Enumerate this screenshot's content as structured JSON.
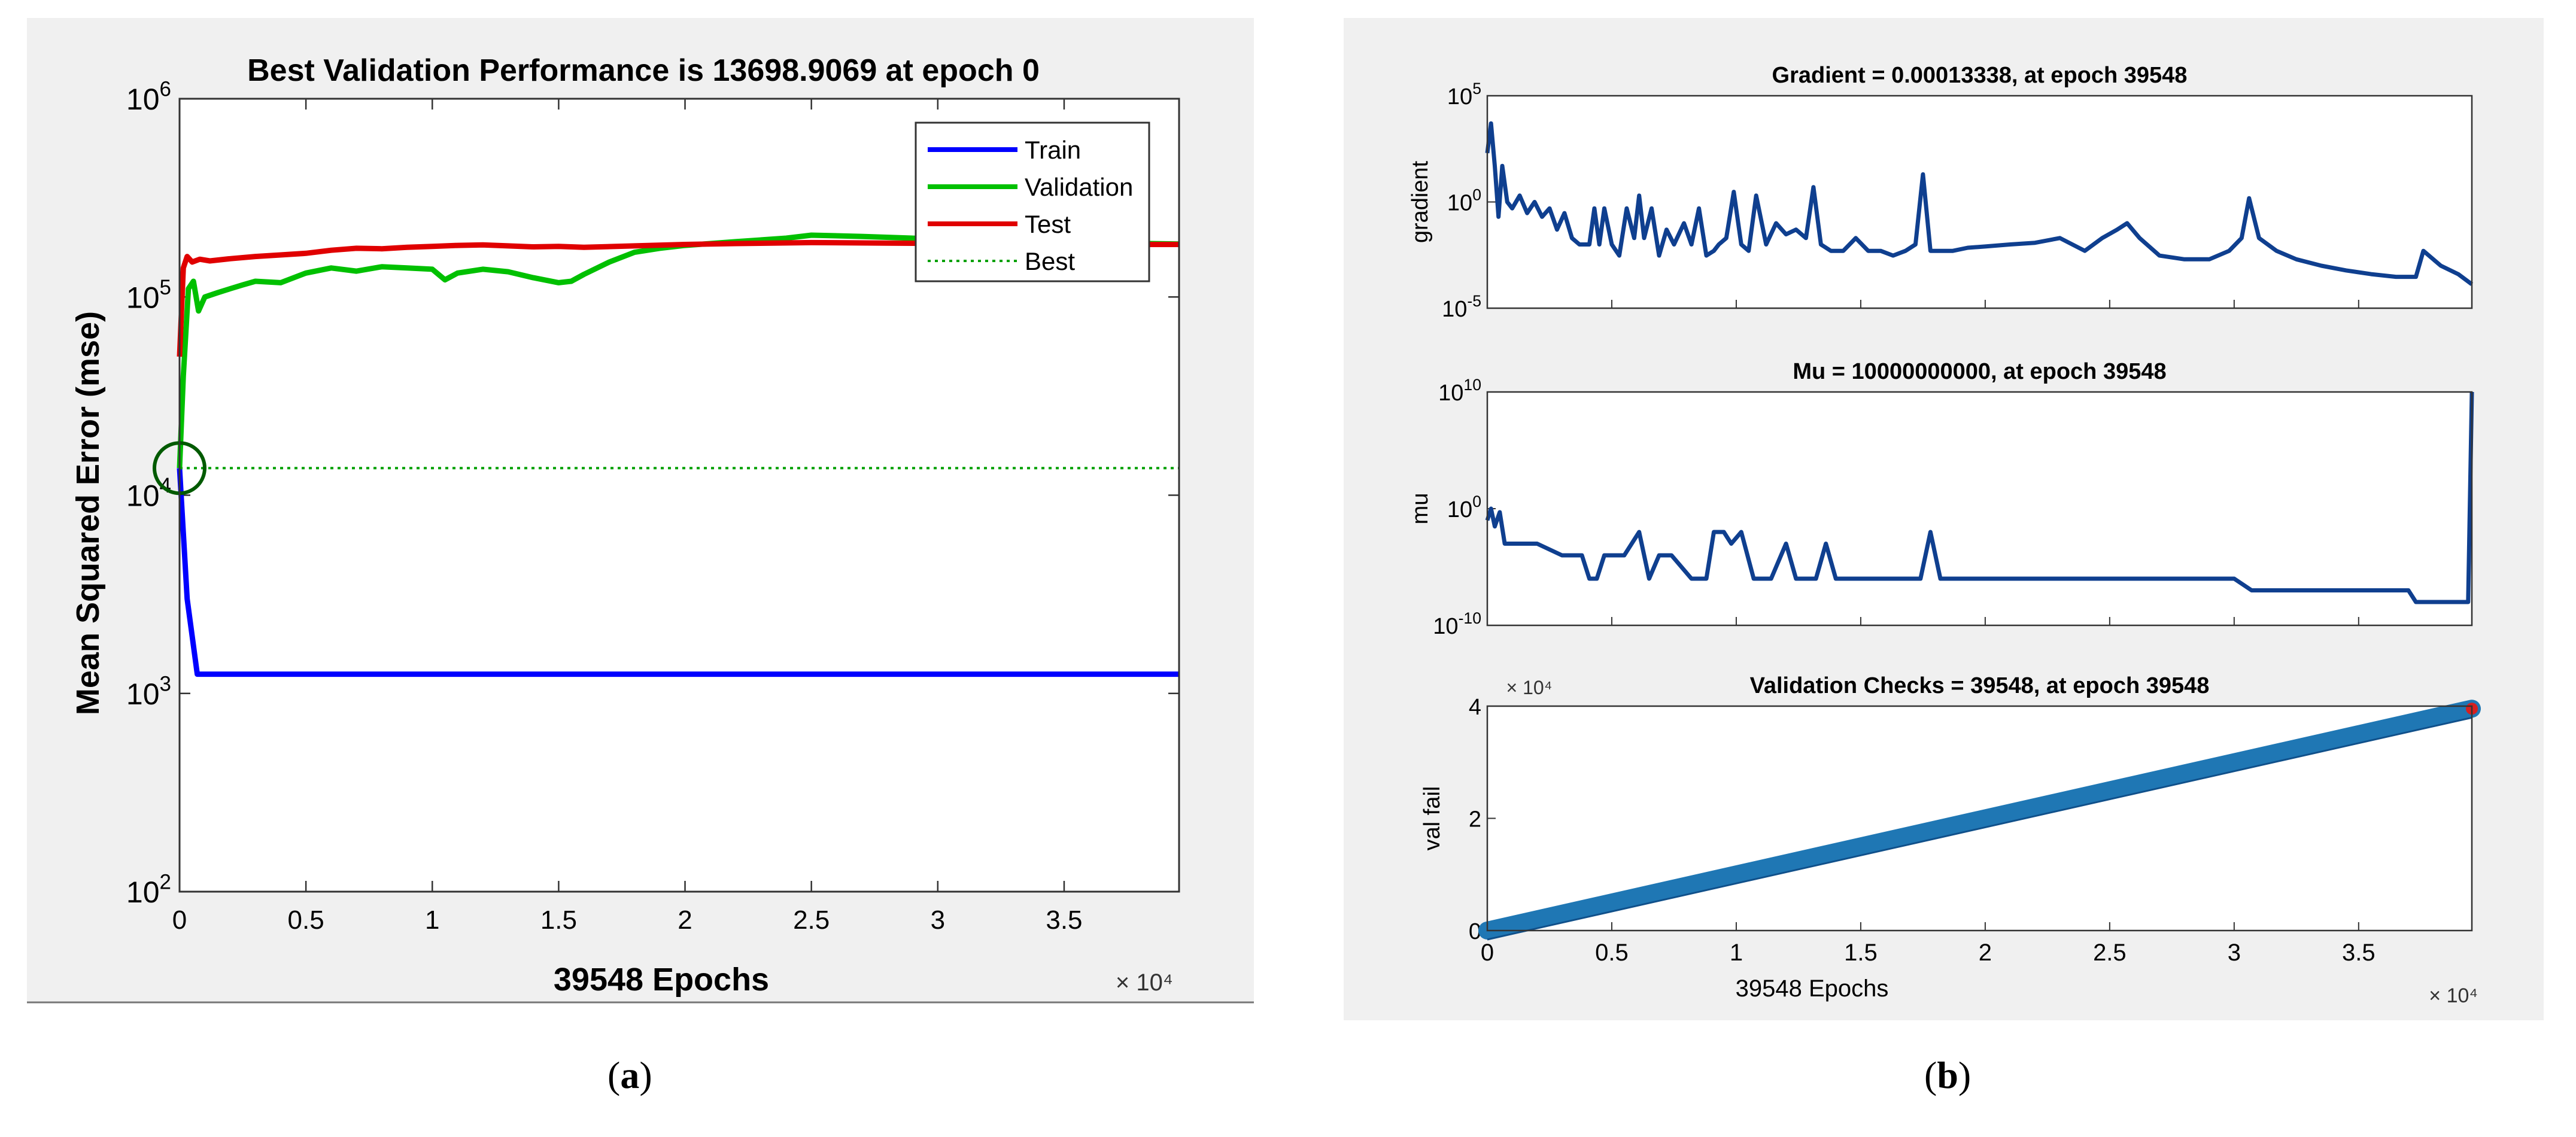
{
  "panels": {
    "a": {
      "caption_open": "(",
      "caption_letter": "a",
      "caption_close": ")"
    },
    "b": {
      "caption_open": "(",
      "caption_letter": "b",
      "caption_close": ")"
    }
  },
  "chart_data": [
    {
      "id": "performance",
      "type": "line",
      "title": "Best Validation Performance is 13698.9069 at epoch 0",
      "xlabel": "39548 Epochs",
      "ylabel": "Mean Squared Error  (mse)",
      "x_multiplier": "× 10⁴",
      "xlim": [
        0,
        39548
      ],
      "ylim": [
        100,
        1000000
      ],
      "yscale": "log",
      "xticks": [
        0,
        5000,
        10000,
        15000,
        20000,
        25000,
        30000,
        35000
      ],
      "xtick_labels": [
        "0",
        "0.5",
        "1",
        "1.5",
        "2",
        "2.5",
        "3",
        "3.5"
      ],
      "yticks": [
        100,
        1000,
        10000,
        100000,
        1000000
      ],
      "ytick_base": "10",
      "ytick_exponents": [
        "2",
        "3",
        "4",
        "5",
        "6"
      ],
      "legend": [
        "Train",
        "Validation",
        "Test",
        "Best"
      ],
      "legend_position": "top-right",
      "best": {
        "epoch": 0,
        "value": 13698.9069
      },
      "series": [
        {
          "name": "Train",
          "color": "#0000ff",
          "x": [
            0,
            300,
            700,
            1500,
            39548
          ],
          "y": [
            13698.9,
            3000,
            1250,
            1250,
            1250
          ]
        },
        {
          "name": "Validation",
          "color": "#00c000",
          "x": [
            0,
            150,
            350,
            550,
            750,
            1000,
            1500,
            2000,
            2500,
            3000,
            4000,
            5000,
            6000,
            7000,
            8000,
            9000,
            10000,
            10500,
            11000,
            12000,
            13000,
            14000,
            15000,
            15500,
            16000,
            17000,
            18000,
            19000,
            20000,
            22000,
            24000,
            25000,
            27000,
            30000,
            33000,
            36000,
            39548
          ],
          "y": [
            13698.9,
            40000,
            110000,
            120000,
            85000,
            100000,
            105000,
            110000,
            115000,
            120000,
            118000,
            132000,
            140000,
            135000,
            142000,
            140000,
            138000,
            122000,
            132000,
            138000,
            134000,
            125000,
            118000,
            120000,
            130000,
            150000,
            168000,
            176000,
            182000,
            190000,
            198000,
            205000,
            202000,
            196000,
            192000,
            188000,
            185000
          ]
        },
        {
          "name": "Test",
          "color": "#e00000",
          "x": [
            0,
            150,
            300,
            500,
            800,
            1200,
            2000,
            3000,
            4000,
            5000,
            6000,
            7000,
            8000,
            9000,
            10000,
            11000,
            12000,
            13000,
            14000,
            15000,
            16000,
            18000,
            20000,
            22000,
            25000,
            28000,
            31000,
            34000,
            37000,
            39548
          ],
          "y": [
            50000,
            140000,
            160000,
            150000,
            155000,
            152000,
            156000,
            160000,
            163000,
            166000,
            172000,
            176000,
            175000,
            178000,
            180000,
            182000,
            183000,
            181000,
            179000,
            180000,
            178000,
            181000,
            184000,
            186000,
            188000,
            187000,
            186000,
            185000,
            184000,
            184000
          ]
        },
        {
          "name": "Best",
          "color": "#00a000",
          "style": "dotted",
          "x": [
            0,
            39548
          ],
          "y": [
            13698.9,
            13698.9
          ]
        }
      ]
    },
    {
      "id": "gradient",
      "type": "line",
      "title": "Gradient = 0.00013338, at epoch 39548",
      "ylabel": "gradient",
      "xlim": [
        0,
        39548
      ],
      "ylim": [
        1e-05,
        100000
      ],
      "yscale": "log",
      "ytick_base": "10",
      "yticks": [
        1e-05,
        1,
        100000
      ],
      "ytick_exponents": [
        "-5",
        "0",
        "5"
      ],
      "color": "#0f3f8f",
      "final_value": 0.00013338,
      "series": [
        {
          "name": "gradient",
          "x": [
            0,
            150,
            300,
            450,
            600,
            800,
            1000,
            1300,
            1600,
            1900,
            2200,
            2500,
            2800,
            3100,
            3400,
            3700,
            4100,
            4300,
            4500,
            4700,
            5000,
            5300,
            5600,
            5900,
            6100,
            6300,
            6600,
            6900,
            7200,
            7500,
            7900,
            8200,
            8500,
            8800,
            9100,
            9300,
            9600,
            9900,
            10200,
            10500,
            10800,
            11200,
            11600,
            12000,
            12400,
            12800,
            13100,
            13400,
            13800,
            14300,
            14800,
            15300,
            15800,
            16300,
            16800,
            17200,
            17500,
            17800,
            18200,
            18700,
            19300,
            20000,
            21000,
            22000,
            23000,
            24000,
            24700,
            25300,
            25700,
            26200,
            27000,
            28000,
            29000,
            29800,
            30300,
            30600,
            31000,
            31700,
            32500,
            33500,
            34500,
            35500,
            36500,
            37000,
            37300,
            37600,
            38300,
            39000,
            39548
          ],
          "y": [
            200,
            5000,
            50,
            0.2,
            50,
            1,
            0.5,
            2,
            0.3,
            1,
            0.2,
            0.5,
            0.05,
            0.3,
            0.02,
            0.01,
            0.01,
            0.5,
            0.01,
            0.5,
            0.01,
            0.003,
            0.5,
            0.02,
            2,
            0.02,
            0.5,
            0.003,
            0.05,
            0.01,
            0.1,
            0.01,
            0.5,
            0.003,
            0.005,
            0.01,
            0.02,
            3,
            0.01,
            0.005,
            2,
            0.01,
            0.1,
            0.03,
            0.05,
            0.02,
            5,
            0.01,
            0.005,
            0.005,
            0.02,
            0.005,
            0.005,
            0.003,
            0.005,
            0.01,
            20,
            0.005,
            0.005,
            0.005,
            0.007,
            0.008,
            0.01,
            0.012,
            0.02,
            0.005,
            0.02,
            0.05,
            0.1,
            0.02,
            0.003,
            0.002,
            0.002,
            0.005,
            0.02,
            1.5,
            0.02,
            0.005,
            0.002,
            0.001,
            0.0006,
            0.0004,
            0.0003,
            0.0003,
            0.0003,
            0.005,
            0.001,
            0.0004,
            0.00013338
          ]
        }
      ]
    },
    {
      "id": "mu",
      "type": "line",
      "title": "Mu = 10000000000, at epoch 39548",
      "ylabel": "mu",
      "xlim": [
        0,
        39548
      ],
      "ylim": [
        1e-10,
        10000000000.0
      ],
      "yscale": "log",
      "ytick_base": "10",
      "yticks": [
        1e-10,
        1,
        10000000000.0
      ],
      "ytick_exponents": [
        "-10",
        "0",
        "10"
      ],
      "color": "#0f3f8f",
      "final_value": 10000000000,
      "series": [
        {
          "name": "mu",
          "x": [
            0,
            150,
            300,
            500,
            700,
            1000,
            2000,
            3000,
            3800,
            4100,
            4400,
            4700,
            5500,
            6100,
            6500,
            6900,
            7400,
            8200,
            8800,
            9100,
            9500,
            9800,
            10200,
            10700,
            11400,
            12000,
            12400,
            12800,
            13200,
            13600,
            14000,
            14400,
            15000,
            16000,
            17400,
            17800,
            18200,
            18600,
            19000,
            20000,
            25000,
            30000,
            30700,
            31000,
            33000,
            36000,
            37000,
            37300,
            38000,
            39000,
            39400,
            39548
          ],
          "y": [
            0.1,
            1,
            0.03,
            0.5,
            0.001,
            0.001,
            0.001,
            0.0001,
            0.0001,
            1e-06,
            1e-06,
            0.0001,
            0.0001,
            0.01,
            1e-06,
            0.0001,
            0.0001,
            1e-06,
            1e-06,
            0.01,
            0.01,
            0.001,
            0.01,
            1e-06,
            1e-06,
            0.001,
            1e-06,
            1e-06,
            1e-06,
            0.001,
            1e-06,
            1e-06,
            1e-06,
            1e-06,
            1e-06,
            0.01,
            1e-06,
            1e-06,
            1e-06,
            1e-06,
            1e-06,
            1e-06,
            1e-07,
            1e-07,
            1e-07,
            1e-07,
            1e-07,
            1e-08,
            1e-08,
            1e-08,
            1e-08,
            10000000000
          ]
        }
      ]
    },
    {
      "id": "val_fail",
      "type": "line",
      "title": "Validation Checks = 39548, at epoch 39548",
      "xlabel": "39548 Epochs",
      "ylabel": "val fail",
      "x_multiplier": "× 10⁴",
      "y_multiplier": "× 10⁴",
      "xlim": [
        0,
        39548
      ],
      "ylim": [
        0,
        40000
      ],
      "xticks": [
        0,
        5000,
        10000,
        15000,
        20000,
        25000,
        30000,
        35000
      ],
      "xtick_labels": [
        "0",
        "0.5",
        "1",
        "1.5",
        "2",
        "2.5",
        "3",
        "3.5"
      ],
      "yticks": [
        0,
        20000,
        40000
      ],
      "ytick_labels": [
        "0",
        "2",
        "4"
      ],
      "color": "#1f77b4",
      "final_value": 39548,
      "series": [
        {
          "name": "val fail",
          "x": [
            0,
            39548
          ],
          "y": [
            0,
            39548
          ]
        }
      ]
    }
  ]
}
